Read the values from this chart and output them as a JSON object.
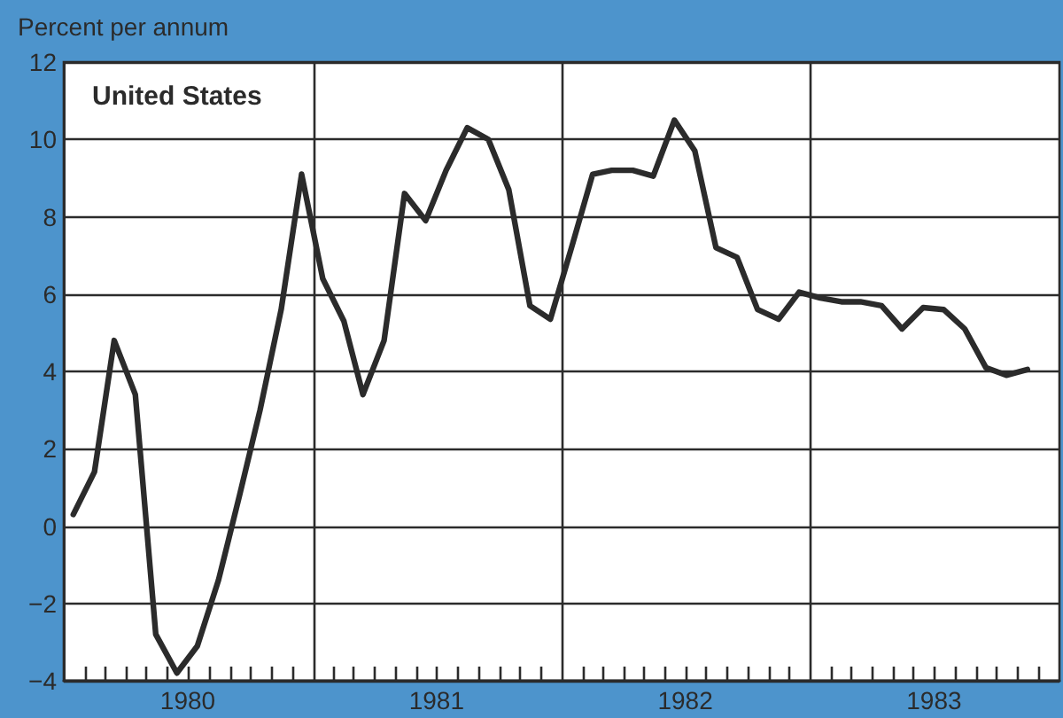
{
  "chart_data": {
    "type": "line",
    "ylabel": "Percent per annum",
    "annotations": [
      "United States"
    ],
    "x": [
      "1980-01-15",
      "1980-02-15",
      "1980-03-15",
      "1980-04-15",
      "1980-05-15",
      "1980-06-15",
      "1980-07-15",
      "1980-08-15",
      "1980-09-15",
      "1980-10-15",
      "1980-11-15",
      "1980-12-15",
      "1981-01-15",
      "1981-02-15",
      "1981-03-15",
      "1981-04-15",
      "1981-05-15",
      "1981-06-15",
      "1981-07-15",
      "1981-08-15",
      "1981-09-15",
      "1981-10-15",
      "1981-11-15",
      "1981-12-15",
      "1982-01-15",
      "1982-02-15",
      "1982-03-15",
      "1982-04-15",
      "1982-05-15",
      "1982-06-15",
      "1982-07-15",
      "1982-08-15",
      "1982-09-15",
      "1982-10-15",
      "1982-11-15",
      "1982-12-15",
      "1983-01-15",
      "1983-02-15",
      "1983-03-15",
      "1983-04-15",
      "1983-05-15",
      "1983-06-15",
      "1983-07-15",
      "1983-08-15",
      "1983-09-15",
      "1983-10-15",
      "1983-11-15"
    ],
    "series": [
      {
        "color": "#2b2b2b",
        "values": [
          0.3,
          1.4,
          4.8,
          3.4,
          -2.8,
          -3.8,
          -3.1,
          -1.4,
          0.8,
          3.0,
          5.6,
          9.1,
          6.4,
          5.3,
          3.4,
          4.8,
          8.6,
          7.9,
          9.2,
          10.3,
          10.0,
          8.7,
          5.7,
          5.35,
          7.2,
          9.1,
          9.2,
          9.2,
          9.05,
          10.5,
          9.7,
          7.2,
          6.95,
          5.6,
          5.35,
          6.05,
          5.9,
          5.8,
          5.8,
          5.7,
          5.1,
          5.65,
          5.6,
          5.1,
          4.1,
          3.9,
          4.05
        ]
      }
    ],
    "xlim": [
      "1980-01-01",
      "1984-01-01"
    ],
    "xticks": [
      {
        "value": "1980-02-01",
        "label": null
      },
      {
        "value": "1980-03-01",
        "label": null
      },
      {
        "value": "1980-04-01",
        "label": null
      },
      {
        "value": "1980-05-01",
        "label": null
      },
      {
        "value": "1980-06-01",
        "label": null
      },
      {
        "value": "1980-07-01",
        "label": "1980"
      },
      {
        "value": "1980-08-01",
        "label": null
      },
      {
        "value": "1980-09-01",
        "label": null
      },
      {
        "value": "1980-10-01",
        "label": null
      },
      {
        "value": "1980-11-01",
        "label": null
      },
      {
        "value": "1980-12-01",
        "label": null
      },
      {
        "value": "1981-02-01",
        "label": null
      },
      {
        "value": "1981-03-01",
        "label": null
      },
      {
        "value": "1981-04-01",
        "label": null
      },
      {
        "value": "1981-05-01",
        "label": null
      },
      {
        "value": "1981-06-01",
        "label": null
      },
      {
        "value": "1981-07-01",
        "label": "1981"
      },
      {
        "value": "1981-08-01",
        "label": null
      },
      {
        "value": "1981-09-01",
        "label": null
      },
      {
        "value": "1981-10-01",
        "label": null
      },
      {
        "value": "1981-11-01",
        "label": null
      },
      {
        "value": "1981-12-01",
        "label": null
      },
      {
        "value": "1982-02-01",
        "label": null
      },
      {
        "value": "1982-03-01",
        "label": null
      },
      {
        "value": "1982-04-01",
        "label": null
      },
      {
        "value": "1982-05-01",
        "label": null
      },
      {
        "value": "1982-06-01",
        "label": null
      },
      {
        "value": "1982-07-01",
        "label": "1982"
      },
      {
        "value": "1982-08-01",
        "label": null
      },
      {
        "value": "1982-09-01",
        "label": null
      },
      {
        "value": "1982-10-01",
        "label": null
      },
      {
        "value": "1982-11-01",
        "label": null
      },
      {
        "value": "1982-12-01",
        "label": null
      },
      {
        "value": "1983-02-01",
        "label": null
      },
      {
        "value": "1983-03-01",
        "label": null
      },
      {
        "value": "1983-04-01",
        "label": null
      },
      {
        "value": "1983-05-01",
        "label": null
      },
      {
        "value": "1983-06-01",
        "label": null
      },
      {
        "value": "1983-07-01",
        "label": "1983"
      },
      {
        "value": "1983-08-01",
        "label": null
      },
      {
        "value": "1983-09-01",
        "label": null
      },
      {
        "value": "1983-10-01",
        "label": null
      },
      {
        "value": "1983-11-01",
        "label": null
      },
      {
        "value": "1983-12-01",
        "label": null
      }
    ],
    "ylim": [
      -4,
      12
    ],
    "yticks": [
      -4,
      -2,
      0,
      2,
      4,
      6,
      8,
      10,
      12
    ],
    "ref_lines": [
      {
        "axis": "x",
        "value": "1981-01-01",
        "color": "#2b2b2b"
      },
      {
        "axis": "x",
        "value": "1982-01-01",
        "color": "#2b2b2b"
      },
      {
        "axis": "x",
        "value": "1983-01-01",
        "color": "#2b2b2b"
      }
    ],
    "grid": "y",
    "marker": "none",
    "line_style": "solid"
  }
}
